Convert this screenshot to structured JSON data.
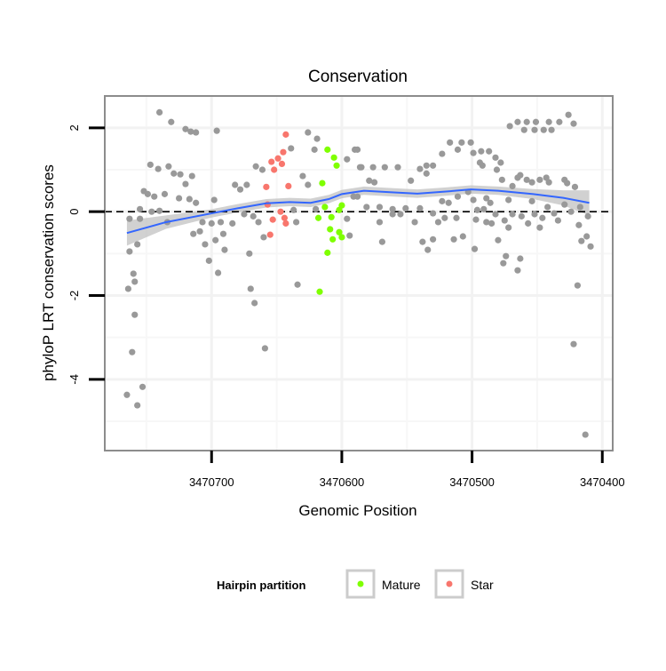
{
  "chart_data": {
    "type": "scatter",
    "title": "Conservation",
    "xlabel": "Genomic Position",
    "ylabel": "phyloP LRT conservation scores",
    "xlim": [
      3470782,
      3470392
    ],
    "x_reversed": true,
    "ylim": [
      -5.7,
      2.76
    ],
    "x_ticks": [
      3470700,
      3470600,
      3470500,
      3470400
    ],
    "x_tick_labels": [
      "3470700",
      "3470600",
      "3470500",
      "3470400"
    ],
    "x_minor_ticks": [
      3470750,
      3470650,
      3470550,
      3470450
    ],
    "y_ticks": [
      2,
      0,
      -2,
      -4
    ],
    "y_tick_labels": [
      "2",
      "0",
      "-2",
      "-4"
    ],
    "y_minor_ticks": [
      1,
      -1,
      -3,
      -5
    ],
    "grid": true,
    "reference_line": {
      "y": 0,
      "style": "dashed",
      "color": "#000000"
    },
    "colors": {
      "other": "#999999",
      "Mature": "#7FFF00",
      "Star": "#F8766D",
      "smooth": "#3366FF",
      "band": "#BEBEBE"
    },
    "legend": {
      "title": "Hairpin partition",
      "position": "bottom",
      "entries": [
        "Mature",
        "Star"
      ]
    },
    "series": [
      {
        "name": "other",
        "points": [
          [
            3470740,
            2.37
          ],
          [
            3470731,
            2.14
          ],
          [
            3470720,
            1.97
          ],
          [
            3470716,
            1.91
          ],
          [
            3470712,
            1.89
          ],
          [
            3470696,
            1.93
          ],
          [
            3470747,
            1.12
          ],
          [
            3470741,
            1.02
          ],
          [
            3470733,
            1.08
          ],
          [
            3470729,
            0.91
          ],
          [
            3470724,
            0.89
          ],
          [
            3470720,
            0.66
          ],
          [
            3470715,
            0.85
          ],
          [
            3470752,
            0.49
          ],
          [
            3470749,
            0.42
          ],
          [
            3470744,
            0.36
          ],
          [
            3470736,
            0.42
          ],
          [
            3470725,
            0.32
          ],
          [
            3470717,
            0.3
          ],
          [
            3470712,
            0.21
          ],
          [
            3470755,
            0.06
          ],
          [
            3470746,
            0
          ],
          [
            3470740,
            0.02
          ],
          [
            3470763,
            -0.17
          ],
          [
            3470755,
            -0.17
          ],
          [
            3470734,
            -0.25
          ],
          [
            3470698,
            0.28
          ],
          [
            3470707,
            -0.25
          ],
          [
            3470700,
            -0.28
          ],
          [
            3470693,
            -0.25
          ],
          [
            3470684,
            -0.28
          ],
          [
            3470714,
            -0.53
          ],
          [
            3470709,
            -0.47
          ],
          [
            3470691,
            -0.53
          ],
          [
            3470682,
            0.64
          ],
          [
            3470673,
            0.64
          ],
          [
            3470678,
            0.53
          ],
          [
            3470666,
            1.08
          ],
          [
            3470661,
            1.0
          ],
          [
            3470675,
            -0.06
          ],
          [
            3470668,
            -0.11
          ],
          [
            3470664,
            -0.25
          ],
          [
            3470660,
            -0.61
          ],
          [
            3470757,
            -0.78
          ],
          [
            3470763,
            -0.95
          ],
          [
            3470705,
            -0.78
          ],
          [
            3470697,
            -0.68
          ],
          [
            3470690,
            -0.91
          ],
          [
            3470671,
            -1.0
          ],
          [
            3470702,
            -1.17
          ],
          [
            3470695,
            -1.46
          ],
          [
            3470760,
            -1.48
          ],
          [
            3470759,
            -1.67
          ],
          [
            3470764,
            -1.84
          ],
          [
            3470670,
            -1.84
          ],
          [
            3470667,
            -2.18
          ],
          [
            3470759,
            -2.46
          ],
          [
            3470634,
            -1.74
          ],
          [
            3470659,
            -3.26
          ],
          [
            3470761,
            -3.35
          ],
          [
            3470753,
            -4.18
          ],
          [
            3470765,
            -4.37
          ],
          [
            3470757,
            -4.62
          ],
          [
            3470626,
            1.89
          ],
          [
            3470619,
            1.74
          ],
          [
            3470639,
            1.51
          ],
          [
            3470621,
            1.48
          ],
          [
            3470630,
            0.85
          ],
          [
            3470626,
            0.64
          ],
          [
            3470637,
            0.04
          ],
          [
            3470635,
            -0.25
          ],
          [
            3470620,
            0.06
          ],
          [
            3470590,
            1.48
          ],
          [
            3470596,
            1.25
          ],
          [
            3470586,
            1.06
          ],
          [
            3470591,
            0.36
          ],
          [
            3470596,
            -0.17
          ],
          [
            3470594,
            -0.57
          ],
          [
            3470588,
            1.48
          ],
          [
            3470585,
            1.06
          ],
          [
            3470576,
            1.06
          ],
          [
            3470567,
            1.06
          ],
          [
            3470557,
            1.06
          ],
          [
            3470579,
            0.74
          ],
          [
            3470575,
            0.7
          ],
          [
            3470588,
            0.36
          ],
          [
            3470581,
            0.11
          ],
          [
            3470571,
            0.11
          ],
          [
            3470561,
            0.06
          ],
          [
            3470551,
            0.08
          ],
          [
            3470540,
            0.08
          ],
          [
            3470530,
            -0.04
          ],
          [
            3470571,
            -0.25
          ],
          [
            3470569,
            -0.72
          ],
          [
            3470561,
            -0.06
          ],
          [
            3470555,
            -0.06
          ],
          [
            3470544,
            -0.25
          ],
          [
            3470547,
            0.74
          ],
          [
            3470540,
            1.02
          ],
          [
            3470535,
            1.1
          ],
          [
            3470530,
            1.1
          ],
          [
            3470535,
            0.91
          ],
          [
            3470538,
            -0.72
          ],
          [
            3470534,
            -0.91
          ],
          [
            3470530,
            -0.66
          ],
          [
            3470526,
            -0.25
          ],
          [
            3470521,
            -0.15
          ],
          [
            3470523,
            0.25
          ],
          [
            3470518,
            0.21
          ],
          [
            3470512,
            -0.15
          ],
          [
            3470514,
            -0.66
          ],
          [
            3470507,
            -0.59
          ],
          [
            3470498,
            -0.89
          ],
          [
            3470511,
            0.36
          ],
          [
            3470503,
            0.47
          ],
          [
            3470499,
            0.28
          ],
          [
            3470496,
            0.04
          ],
          [
            3470497,
            -0.19
          ],
          [
            3470489,
            -0.25
          ],
          [
            3470485,
            -0.28
          ],
          [
            3470491,
            0.06
          ],
          [
            3470489,
            0.32
          ],
          [
            3470486,
            0.21
          ],
          [
            3470482,
            -0.06
          ],
          [
            3470480,
            -0.68
          ],
          [
            3470475,
            -0.21
          ],
          [
            3470472,
            -0.38
          ],
          [
            3470472,
            0.28
          ],
          [
            3470469,
            -0.06
          ],
          [
            3470462,
            -0.11
          ],
          [
            3470476,
            -1.23
          ],
          [
            3470474,
            -1.06
          ],
          [
            3470465,
            -1.4
          ],
          [
            3470463,
            -1.12
          ],
          [
            3470457,
            -0.28
          ],
          [
            3470452,
            -0.06
          ],
          [
            3470448,
            -0.38
          ],
          [
            3470446,
            -0.15
          ],
          [
            3470442,
            0.11
          ],
          [
            3470434,
            -0.21
          ],
          [
            3470437,
            -0.04
          ],
          [
            3470454,
            0.25
          ],
          [
            3470429,
            0.17
          ],
          [
            3470424,
            0
          ],
          [
            3470417,
            0.11
          ],
          [
            3470418,
            -0.32
          ],
          [
            3470411,
            -0.11
          ],
          [
            3470412,
            -0.59
          ],
          [
            3470416,
            -0.7
          ],
          [
            3470409,
            -0.83
          ],
          [
            3470419,
            -1.76
          ],
          [
            3470422,
            -3.16
          ],
          [
            3470413,
            -5.32
          ],
          [
            3470517,
            1.65
          ],
          [
            3470508,
            1.65
          ],
          [
            3470501,
            1.65
          ],
          [
            3470511,
            1.48
          ],
          [
            3470523,
            1.38
          ],
          [
            3470499,
            1.4
          ],
          [
            3470493,
            1.44
          ],
          [
            3470487,
            1.44
          ],
          [
            3470482,
            1.29
          ],
          [
            3470478,
            1.17
          ],
          [
            3470494,
            1.17
          ],
          [
            3470492,
            1.1
          ],
          [
            3470481,
            1.0
          ],
          [
            3470477,
            0.76
          ],
          [
            3470469,
            0.61
          ],
          [
            3470465,
            0.81
          ],
          [
            3470463,
            0.87
          ],
          [
            3470458,
            0.76
          ],
          [
            3470454,
            0.7
          ],
          [
            3470448,
            0.76
          ],
          [
            3470443,
            0.81
          ],
          [
            3470441,
            0.7
          ],
          [
            3470429,
            0.76
          ],
          [
            3470427,
            0.68
          ],
          [
            3470421,
            0.59
          ],
          [
            3470471,
            2.04
          ],
          [
            3470465,
            2.14
          ],
          [
            3470458,
            2.14
          ],
          [
            3470451,
            2.14
          ],
          [
            3470460,
            1.95
          ],
          [
            3470452,
            1.95
          ],
          [
            3470445,
            1.95
          ],
          [
            3470439,
            1.95
          ],
          [
            3470441,
            2.14
          ],
          [
            3470433,
            2.14
          ],
          [
            3470426,
            2.31
          ],
          [
            3470422,
            2.1
          ]
        ]
      },
      {
        "name": "Star",
        "points": [
          [
            3470643,
            1.84
          ],
          [
            3470645,
            1.42
          ],
          [
            3470649,
            1.27
          ],
          [
            3470654,
            1.19
          ],
          [
            3470646,
            1.14
          ],
          [
            3470652,
            1.0
          ],
          [
            3470658,
            0.59
          ],
          [
            3470641,
            0.61
          ],
          [
            3470657,
            0.17
          ],
          [
            3470647,
            0
          ],
          [
            3470644,
            -0.15
          ],
          [
            3470653,
            -0.19
          ],
          [
            3470643,
            -0.28
          ],
          [
            3470655,
            -0.55
          ]
        ]
      },
      {
        "name": "Mature",
        "points": [
          [
            3470611,
            1.48
          ],
          [
            3470606,
            1.29
          ],
          [
            3470604,
            1.1
          ],
          [
            3470615,
            0.68
          ],
          [
            3470613,
            0.11
          ],
          [
            3470618,
            -0.15
          ],
          [
            3470608,
            -0.13
          ],
          [
            3470600,
            0.15
          ],
          [
            3470602,
            0.04
          ],
          [
            3470609,
            -0.42
          ],
          [
            3470602,
            -0.49
          ],
          [
            3470607,
            -0.66
          ],
          [
            3470600,
            -0.61
          ],
          [
            3470611,
            -0.98
          ],
          [
            3470617,
            -1.91
          ]
        ]
      }
    ],
    "smooth": {
      "method": "loess",
      "x": [
        3470765,
        3470735,
        3470700,
        3470680,
        3470658,
        3470640,
        3470624,
        3470610,
        3470600,
        3470583,
        3470560,
        3470542,
        3470520,
        3470501,
        3470480,
        3470453,
        3470430,
        3470410
      ],
      "y": [
        -0.51,
        -0.25,
        -0.04,
        0.08,
        0.2,
        0.23,
        0.21,
        0.3,
        0.42,
        0.5,
        0.46,
        0.43,
        0.48,
        0.53,
        0.5,
        0.42,
        0.33,
        0.21
      ],
      "se": [
        0.3,
        0.16,
        0.1,
        0.1,
        0.1,
        0.1,
        0.1,
        0.1,
        0.1,
        0.1,
        0.1,
        0.1,
        0.1,
        0.1,
        0.1,
        0.12,
        0.18,
        0.3
      ]
    }
  }
}
